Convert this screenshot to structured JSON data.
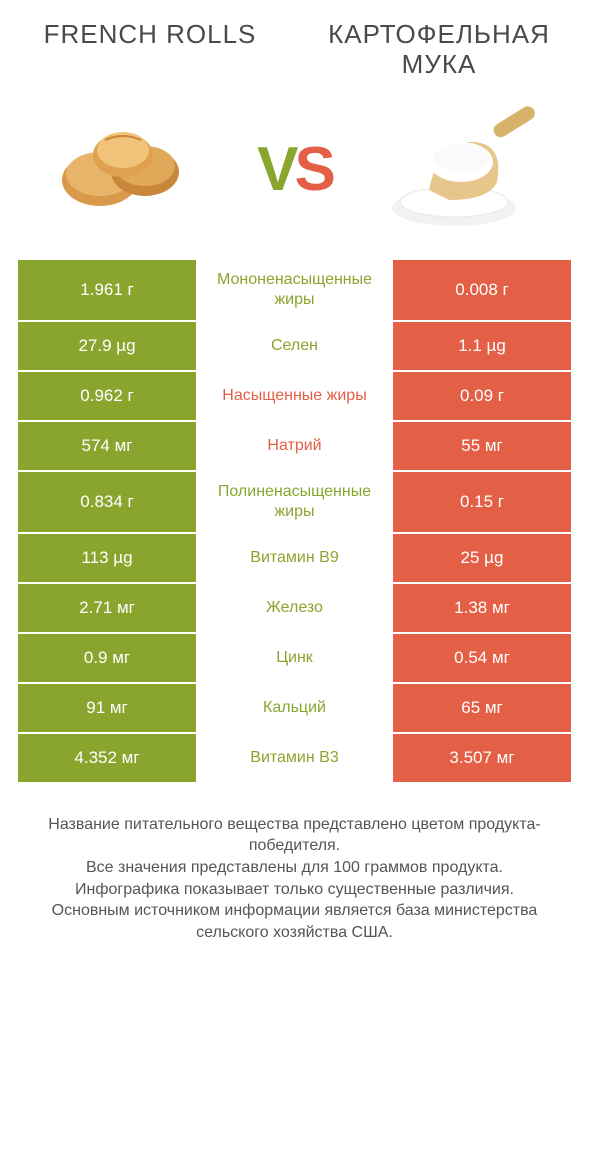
{
  "header": {
    "left_title": "FRENCH ROLLS",
    "right_title": "КАРТОФЕЛЬНАЯ МУКА",
    "vs_v": "V",
    "vs_s": "S"
  },
  "colors": {
    "left": "#8aa52e",
    "right": "#e35f45",
    "background": "#ffffff",
    "text": "#4a4a4a"
  },
  "rows": [
    {
      "left": "1.961 г",
      "label": "Мононенасыщенные жиры",
      "right": "0.008 г",
      "winner": "left"
    },
    {
      "left": "27.9 µg",
      "label": "Селен",
      "right": "1.1 µg",
      "winner": "left"
    },
    {
      "left": "0.962 г",
      "label": "Насыщенные жиры",
      "right": "0.09 г",
      "winner": "right"
    },
    {
      "left": "574 мг",
      "label": "Натрий",
      "right": "55 мг",
      "winner": "right"
    },
    {
      "left": "0.834 г",
      "label": "Полиненасыщенные жиры",
      "right": "0.15 г",
      "winner": "left"
    },
    {
      "left": "113 µg",
      "label": "Витамин B9",
      "right": "25 µg",
      "winner": "left"
    },
    {
      "left": "2.71 мг",
      "label": "Железо",
      "right": "1.38 мг",
      "winner": "left"
    },
    {
      "left": "0.9 мг",
      "label": "Цинк",
      "right": "0.54 мг",
      "winner": "left"
    },
    {
      "left": "91 мг",
      "label": "Кальций",
      "right": "65 мг",
      "winner": "left"
    },
    {
      "left": "4.352 мг",
      "label": "Витамин B3",
      "right": "3.507 мг",
      "winner": "left"
    }
  ],
  "footer": {
    "line1": "Название питательного вещества представлено цветом продукта-победителя.",
    "line2": "Все значения представлены для 100 граммов продукта.",
    "line3": "Инфографика показывает только существенные различия.",
    "line4": "Основным источником информации является база министерства сельского хозяйства США."
  }
}
